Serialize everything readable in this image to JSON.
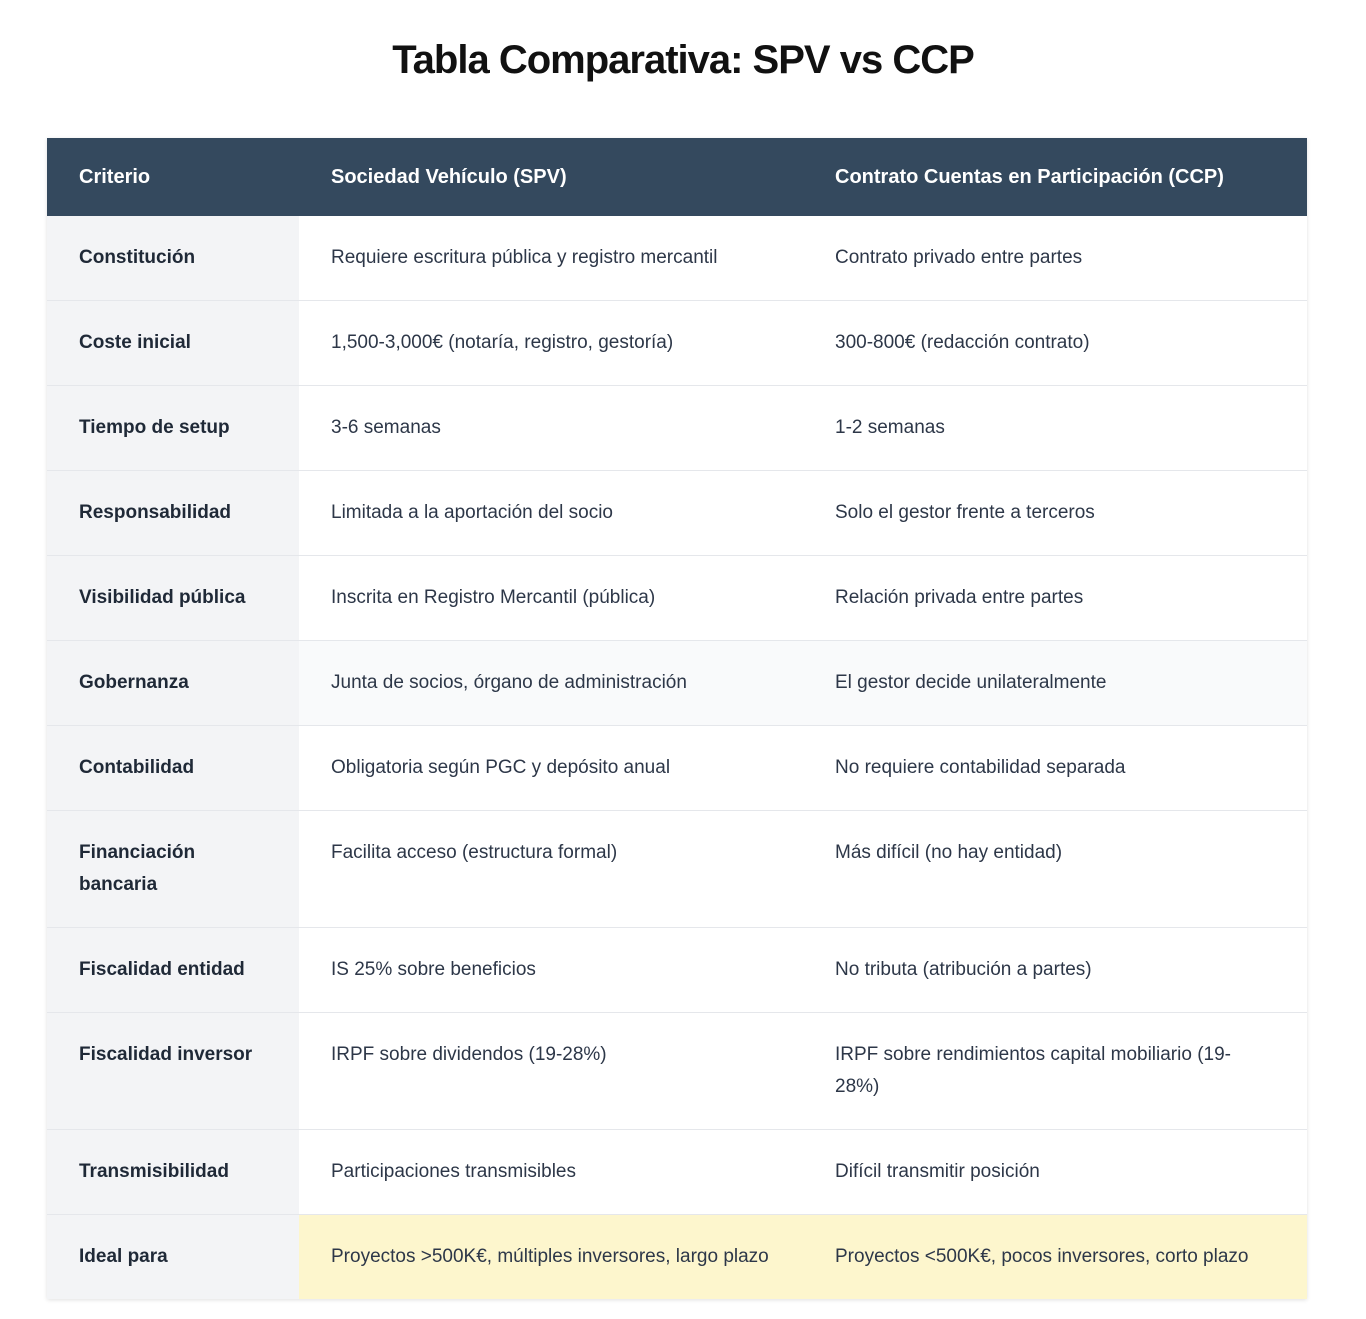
{
  "title": "Tabla Comparativa: SPV vs CCP",
  "headers": {
    "criterion": "Criterio",
    "spv": "Sociedad Vehículo (SPV)",
    "ccp": "Contrato Cuentas en Participación (CCP)"
  },
  "rows": [
    {
      "criterion": "Constitución",
      "spv": "Requiere escritura pública y registro mercantil",
      "ccp": "Contrato privado entre partes"
    },
    {
      "criterion": "Coste inicial",
      "spv": "1,500-3,000€ (notaría, registro, gestoría)",
      "ccp": "300-800€ (redacción contrato)"
    },
    {
      "criterion": "Tiempo de setup",
      "spv": "3-6 semanas",
      "ccp": "1-2 semanas"
    },
    {
      "criterion": "Responsabilidad",
      "spv": "Limitada a la aportación del socio",
      "ccp": "Solo el gestor frente a terceros"
    },
    {
      "criterion": "Visibilidad pública",
      "spv": "Inscrita en Registro Mercantil (pública)",
      "ccp": "Relación privada entre partes"
    },
    {
      "criterion": "Gobernanza",
      "spv": "Junta de socios, órgano de administración",
      "ccp": "El gestor decide unilateralmente"
    },
    {
      "criterion": "Contabilidad",
      "spv": "Obligatoria según PGC y depósito anual",
      "ccp": "No requiere contabilidad separada"
    },
    {
      "criterion": "Financiación bancaria",
      "spv": "Facilita acceso (estructura formal)",
      "ccp": "Más difícil (no hay entidad)"
    },
    {
      "criterion": "Fiscalidad entidad",
      "spv": "IS 25% sobre beneficios",
      "ccp": "No tributa (atribución a partes)"
    },
    {
      "criterion": "Fiscalidad inversor",
      "spv": "IRPF sobre dividendos (19-28%)",
      "ccp": "IRPF sobre rendimientos capital mobiliario (19-28%)"
    },
    {
      "criterion": "Transmisibilidad",
      "spv": "Participaciones transmisibles",
      "ccp": "Difícil transmitir posición"
    },
    {
      "criterion": "Ideal para",
      "spv": "Proyectos >500K€, múltiples inversores, largo plazo",
      "ccp": "Proyectos <500K€, pocos inversores, corto plazo"
    }
  ]
}
